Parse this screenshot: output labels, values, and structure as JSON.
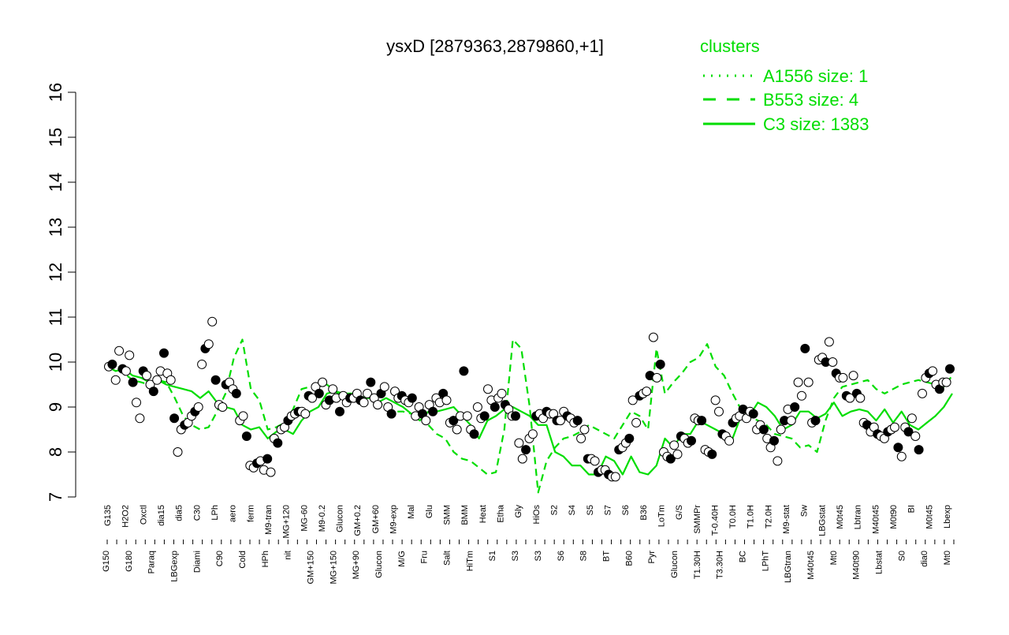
{
  "chart_data": {
    "type": "line",
    "title": "ysxD [2879363,2879860,+1]",
    "xlabel": "",
    "ylabel": "",
    "ylim": [
      7,
      16
    ],
    "y_ticks": [
      7,
      8,
      9,
      10,
      11,
      12,
      13,
      14,
      15,
      16
    ],
    "grid": false,
    "legend": {
      "title": "clusters",
      "placement": "top-right",
      "color": "#00dd00",
      "entries": [
        {
          "label": "A1556 size: 1",
          "style": "dotted"
        },
        {
          "label": "B553 size: 4",
          "style": "dashed"
        },
        {
          "label": "C3 size: 1383",
          "style": "solid"
        }
      ]
    },
    "x_tick_labels_top": [
      "G135",
      "H2O2",
      "Oxctl",
      "dia15",
      "dia5",
      "C30",
      "LPh",
      "aero",
      "ferm",
      "M9-tran",
      "MG+120",
      "MG-60",
      "M9-0.2",
      "Glucon",
      "GM+0.2",
      "GM+60",
      "M9-exp",
      "Mal",
      "Glu",
      "SMM",
      "BMM",
      "Heat",
      "Etha",
      "Gly",
      "HiOs",
      "S2",
      "S4",
      "S5",
      "S7",
      "S6",
      "B36",
      "LoTm",
      "G/S",
      "SMMPr",
      "T-0.40H",
      "T0.0H",
      "T1.0H",
      "T2.0H",
      "M9-stat",
      "Sw",
      "LBGstat",
      "M0t45",
      "Lbtran",
      "M40t45",
      "M0t90",
      "BI",
      "M0t45",
      "Lbexp"
    ],
    "x_tick_labels_bottom": [
      "G150",
      "G180",
      "Paraq",
      "LBGexp",
      "Diami",
      "C90",
      "Cold",
      "HPh",
      "nit",
      "GM+150",
      "MG+150",
      "MG+90",
      "Glucon",
      "M/G",
      "Fru",
      "Salt",
      "HiTm",
      "S1",
      "S3",
      "S3",
      "S6",
      "S8",
      "BT",
      "B60",
      "Pyr",
      "Glucon",
      "T1.30H",
      "T3.30H",
      "BC",
      "LPhT",
      "LBGtran",
      "M40t45",
      "Mt0",
      "M40t90",
      "Lbstat",
      "S0",
      "dia0",
      "Mt0"
    ],
    "series": [
      {
        "style": "solid",
        "values": [
          9.9,
          9.8,
          9.85,
          9.7,
          9.65,
          9.55,
          9.6,
          9.5,
          9.45,
          9.4,
          9.35,
          9.2,
          9.35,
          9.1,
          9.0,
          8.95,
          8.6,
          8.5,
          8.55,
          8.3,
          8.45,
          8.5,
          8.4,
          8.7,
          8.9,
          9.0,
          9.3,
          9.35,
          9.3,
          9.3,
          9.2,
          9.25,
          9.1,
          9.2,
          9.1,
          9.0,
          8.85,
          8.7,
          8.9,
          8.9,
          8.95,
          9.0,
          8.8,
          8.6,
          8.3,
          8.7,
          8.8,
          8.95,
          9.0,
          8.9,
          8.8,
          8.6,
          8.6,
          8.0,
          7.9,
          7.7,
          7.7,
          7.5,
          7.5,
          7.9,
          7.8,
          7.5,
          7.9,
          7.55,
          7.5,
          7.7,
          8.3,
          8.1,
          8.4,
          8.4,
          8.7,
          8.6,
          8.5,
          8.4,
          8.3,
          8.8,
          8.8,
          9.1,
          9.0,
          8.8,
          8.5,
          8.6,
          8.9,
          8.9,
          8.75,
          8.85,
          9.1,
          8.8,
          8.9,
          8.95,
          8.9,
          8.7,
          8.95,
          8.65,
          8.9,
          8.6,
          8.5,
          8.65,
          8.8,
          9.0,
          9.3
        ]
      },
      {
        "style": "dashed",
        "values": [
          9.95,
          9.9,
          9.75,
          9.6,
          9.55,
          9.5,
          9.6,
          9.55,
          9.2,
          8.8,
          8.6,
          8.5,
          8.55,
          8.9,
          9.3,
          10.1,
          10.5,
          9.4,
          9.15,
          8.5,
          8.55,
          8.65,
          8.95,
          9.4,
          9.45,
          9.5,
          9.5,
          9.35,
          9.2,
          9.15,
          9.2,
          9.2,
          9.1,
          9.0,
          8.9,
          8.9,
          8.85,
          8.8,
          8.6,
          8.4,
          8.3,
          8.0,
          7.85,
          7.8,
          7.65,
          7.5,
          7.55,
          8.5,
          10.5,
          10.3,
          9.0,
          7.1,
          7.8,
          8.1,
          8.3,
          8.35,
          8.45,
          8.6,
          8.5,
          8.4,
          8.3,
          8.6,
          8.9,
          8.8,
          8.5,
          10.3,
          9.3,
          9.55,
          9.75,
          10.0,
          10.1,
          10.4,
          9.9,
          9.7,
          9.3,
          8.95,
          8.8,
          8.7,
          8.6,
          8.4,
          8.35,
          8.3,
          8.1,
          8.15,
          8.0,
          8.7,
          9.2,
          9.45,
          9.5,
          9.55,
          9.6,
          9.4,
          9.3,
          9.4,
          9.5,
          9.55,
          9.6,
          9.55,
          9.5,
          9.45,
          9.7
        ]
      }
    ],
    "points": [
      9.9,
      9.95,
      9.6,
      10.25,
      9.85,
      9.8,
      10.15,
      9.55,
      9.1,
      8.75,
      9.8,
      9.7,
      9.5,
      9.35,
      9.6,
      9.8,
      10.2,
      9.75,
      9.6,
      8.75,
      8.0,
      8.5,
      8.6,
      8.65,
      8.8,
      8.9,
      9.0,
      9.95,
      10.3,
      10.4,
      10.9,
      9.6,
      9.05,
      9.0,
      9.5,
      9.55,
      9.4,
      9.3,
      8.7,
      8.8,
      8.35,
      7.7,
      7.65,
      7.75,
      7.8,
      7.6,
      7.85,
      7.55,
      8.3,
      8.2,
      8.5,
      8.55,
      8.7,
      8.8,
      8.85,
      8.9,
      8.9,
      8.85,
      9.25,
      9.2,
      9.45,
      9.3,
      9.55,
      9.05,
      9.15,
      9.4,
      9.2,
      8.9,
      9.25,
      9.1,
      9.2,
      9.2,
      9.3,
      9.15,
      9.1,
      9.3,
      9.55,
      9.2,
      9.05,
      9.3,
      9.45,
      9.0,
      8.85,
      9.35,
      9.2,
      9.25,
      9.15,
      9.1,
      9.2,
      8.8,
      9.0,
      8.85,
      8.7,
      9.05,
      8.9,
      9.2,
      9.1,
      9.3,
      9.15,
      8.65,
      8.7,
      8.5,
      8.8,
      9.8,
      8.8,
      8.5,
      8.4,
      9.0,
      8.75,
      8.8,
      9.4,
      9.15,
      9.0,
      9.2,
      9.3,
      9.05,
      8.95,
      8.8,
      8.8,
      8.2,
      7.85,
      8.05,
      8.3,
      8.4,
      8.8,
      8.85,
      8.75,
      8.9,
      8.85,
      8.85,
      8.7,
      8.7,
      8.9,
      8.8,
      8.75,
      8.65,
      8.7,
      8.3,
      8.5,
      7.85,
      7.85,
      7.8,
      7.55,
      7.6,
      7.6,
      7.5,
      7.45,
      7.45,
      8.05,
      8.1,
      8.2,
      8.3,
      9.15,
      8.65,
      9.25,
      9.3,
      9.35,
      9.7,
      10.55,
      9.65,
      9.95,
      8.0,
      7.9,
      7.85,
      8.15,
      7.95,
      8.35,
      8.3,
      8.2,
      8.25,
      8.75,
      8.7,
      8.7,
      8.05,
      8.0,
      7.95,
      9.15,
      8.9,
      8.4,
      8.35,
      8.25,
      8.65,
      8.75,
      8.8,
      8.95,
      8.75,
      8.9,
      8.85,
      8.5,
      8.6,
      8.5,
      8.3,
      8.1,
      8.25,
      7.8,
      8.5,
      8.7,
      8.95,
      8.7,
      9.0,
      9.55,
      9.25,
      10.3,
      9.55,
      8.65,
      8.7,
      10.05,
      10.1,
      10.0,
      10.45,
      10.0,
      9.75,
      9.65,
      9.65,
      9.25,
      9.2,
      9.7,
      9.3,
      9.2,
      8.65,
      8.6,
      8.45,
      8.55,
      8.4,
      8.35,
      8.3,
      8.45,
      8.5,
      8.55,
      8.1,
      7.9,
      8.55,
      8.45,
      8.75,
      8.35,
      8.05,
      9.3,
      9.65,
      9.75,
      9.8,
      9.5,
      9.4,
      9.55,
      9.55,
      9.85
    ]
  }
}
